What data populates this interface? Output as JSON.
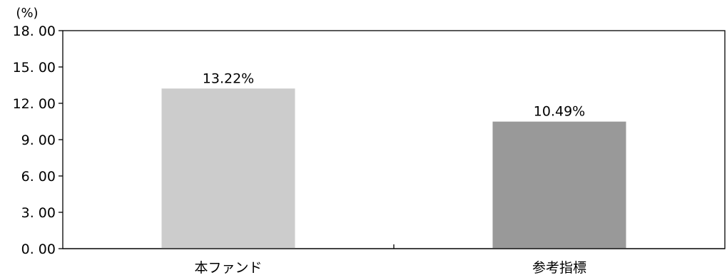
{
  "chart_data": {
    "type": "bar",
    "y_unit": "(%)",
    "categories": [
      "本ファンド",
      "参考指標"
    ],
    "values": [
      13.22,
      10.49
    ],
    "data_labels": [
      "13.22%",
      "10.49%"
    ],
    "bar_colors": [
      "#cccccc",
      "#999999"
    ],
    "ylim": [
      0,
      18
    ],
    "yticks": [
      0,
      3,
      6,
      9,
      12,
      15,
      18
    ],
    "ytick_labels": [
      "0. 00",
      "3. 00",
      "6. 00",
      "9. 00",
      "12. 00",
      "15. 00",
      "18. 00"
    ],
    "grid": false,
    "title": "",
    "xlabel": "",
    "ylabel": ""
  }
}
